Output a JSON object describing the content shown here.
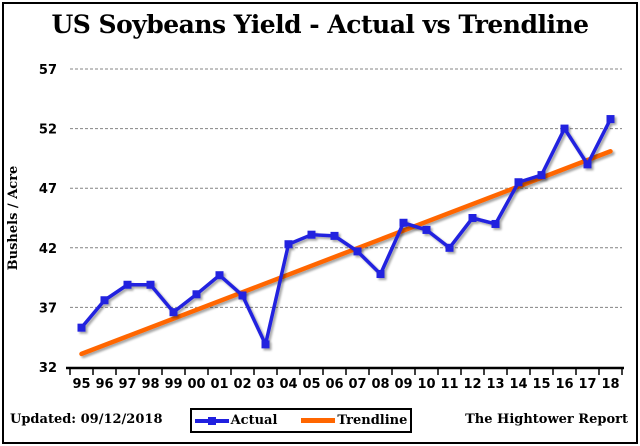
{
  "chart_data": {
    "type": "line",
    "title": "US Soybeans Yield - Actual vs Trendline",
    "xlabel": "",
    "ylabel": "Bushels / Acre",
    "categories": [
      "95",
      "96",
      "97",
      "98",
      "99",
      "00",
      "01",
      "02",
      "03",
      "04",
      "05",
      "06",
      "07",
      "08",
      "09",
      "10",
      "11",
      "12",
      "13",
      "14",
      "15",
      "16",
      "17",
      "18"
    ],
    "series": [
      {
        "name": "Actual",
        "color": "#2020DF",
        "marker": "square",
        "values": [
          35.3,
          37.6,
          38.9,
          38.9,
          36.6,
          38.1,
          39.7,
          38.0,
          33.9,
          42.3,
          43.1,
          43.0,
          41.7,
          39.8,
          44.1,
          43.5,
          42.0,
          44.5,
          44.0,
          47.5,
          48.1,
          52.0,
          49.0,
          52.8
        ]
      },
      {
        "name": "Trendline",
        "color": "#FF6600",
        "marker": "none",
        "endpoints": [
          33.1,
          50.1
        ]
      }
    ],
    "ylim": [
      32,
      57
    ],
    "yticks": [
      32,
      37,
      42,
      47,
      52,
      57
    ],
    "grid": "horizontal",
    "gridline_color": "#848484",
    "legend_position": "bottom-center"
  },
  "footer": {
    "updated": "Updated: 09/12/2018",
    "brand": "The Hightower Report"
  }
}
